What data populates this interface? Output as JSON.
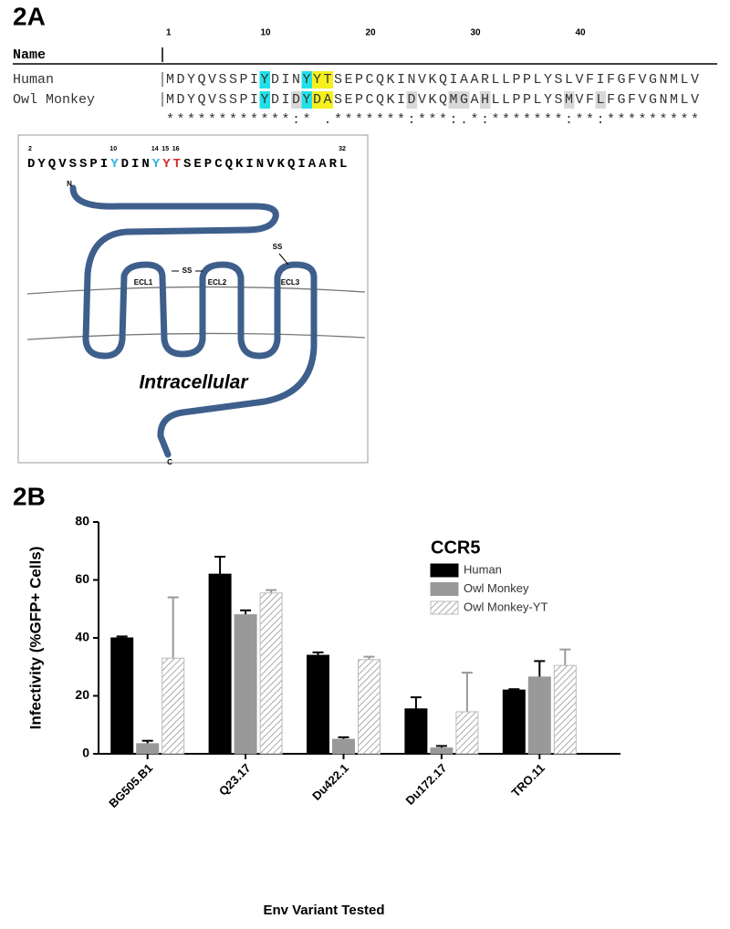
{
  "panel_a": {
    "label": "2A",
    "alignment": {
      "name_header": "Name",
      "ruler": [
        1,
        10,
        20,
        30,
        40
      ],
      "rows": [
        {
          "name": "Human",
          "sequence": "MDYQVSSPIYDINYYTSEPCQKINVKQIAARLLPPLYSLVFIFGFVGNMLV"
        },
        {
          "name": "Owl Monkey",
          "sequence": "MDYQVSSPIYDIDYDASEPCQKIDVKQMGAHLLPPLYSMVFLFGFVGNMLV"
        }
      ],
      "consensus": "************:* .*******:***:.*:*******:**:*********",
      "highlights": [
        {
          "row": 0,
          "positions": [
            10,
            14
          ],
          "color": "#22e0e8"
        },
        {
          "row": 1,
          "positions": [
            10,
            14
          ],
          "color": "#22e0e8"
        },
        {
          "row": 0,
          "positions": [
            15,
            16
          ],
          "color": "#f5f01e"
        },
        {
          "row": 1,
          "positions": [
            15,
            16
          ],
          "color": "#f5f01e"
        },
        {
          "row": 1,
          "positions": [
            13,
            24,
            28,
            29,
            31,
            39,
            42
          ],
          "color": "#d8d8d8"
        }
      ]
    },
    "diagram": {
      "sequence": "DYQVSSPIYDINYYTSEPCQKINVKQIAARL",
      "start": 2,
      "ruler": [
        2,
        10,
        14,
        15,
        16,
        32
      ],
      "highlights": [
        {
          "positions": [
            10,
            14
          ],
          "color": "#2bb3e3"
        },
        {
          "positions": [
            15,
            16
          ],
          "color": "#d42a2a"
        }
      ],
      "labels": [
        "N",
        "C",
        "SS",
        "SS",
        "ECL1",
        "ECL2",
        "ECL3",
        "Intracellular"
      ]
    }
  },
  "panel_b": {
    "label": "2B"
  },
  "chart_data": {
    "type": "bar",
    "categories": [
      "BG505.B1",
      "Q23.17",
      "Du422.1",
      "Du172.17",
      "TRO.11"
    ],
    "series": [
      {
        "name": "Human",
        "color": "#000000",
        "values": [
          40,
          62,
          34,
          15.5,
          22
        ],
        "errors": [
          0.5,
          6,
          1,
          4,
          0.3
        ]
      },
      {
        "name": "Owl Monkey",
        "color": "#999999",
        "values": [
          3.5,
          48,
          5,
          2,
          26.5
        ],
        "errors": [
          1,
          1.5,
          0.7,
          0.7,
          5.5
        ]
      },
      {
        "name": "Owl Monkey-YT",
        "color": "#ffffff",
        "pattern": "hatch",
        "values": [
          33,
          55.5,
          32.5,
          14.5,
          30.5
        ],
        "errors": [
          21,
          1,
          1,
          13.5,
          5.5
        ]
      }
    ],
    "ylim": [
      0,
      80
    ],
    "yticks": [
      0,
      20,
      40,
      60,
      80
    ],
    "y_label": "Infectivity (%GFP+ Cells)",
    "x_label": "Env Variant Tested",
    "legend_title": "CCR5",
    "legend": "upper right"
  }
}
